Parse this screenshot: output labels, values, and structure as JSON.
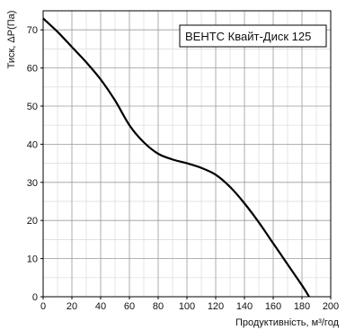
{
  "chart_data": {
    "type": "line",
    "title": "",
    "xlabel": "Продуктивність, м³/год",
    "ylabel": "Тиск, ΔP(Па)",
    "xlim": [
      0,
      200
    ],
    "ylim": [
      0,
      75
    ],
    "x_ticks": [
      0,
      20,
      40,
      60,
      80,
      100,
      120,
      140,
      160,
      180,
      200
    ],
    "y_ticks": [
      0,
      10,
      20,
      30,
      40,
      50,
      60,
      70
    ],
    "x_minor_step": 10,
    "y_minor_step": 5,
    "grid": true,
    "legend_placement": "top-right",
    "series": [
      {
        "name": "ВЕНТС Квайт-Диск 125",
        "color": "#000000",
        "x": [
          0,
          10,
          20,
          30,
          40,
          50,
          60,
          70,
          80,
          90,
          100,
          110,
          120,
          130,
          140,
          150,
          160,
          170,
          180,
          185
        ],
        "y": [
          73,
          69.5,
          65.5,
          61.5,
          57,
          51.5,
          45,
          40.5,
          37.5,
          36,
          35,
          33.8,
          32,
          28.8,
          24.5,
          19.5,
          14,
          8.5,
          3,
          0
        ]
      }
    ]
  }
}
